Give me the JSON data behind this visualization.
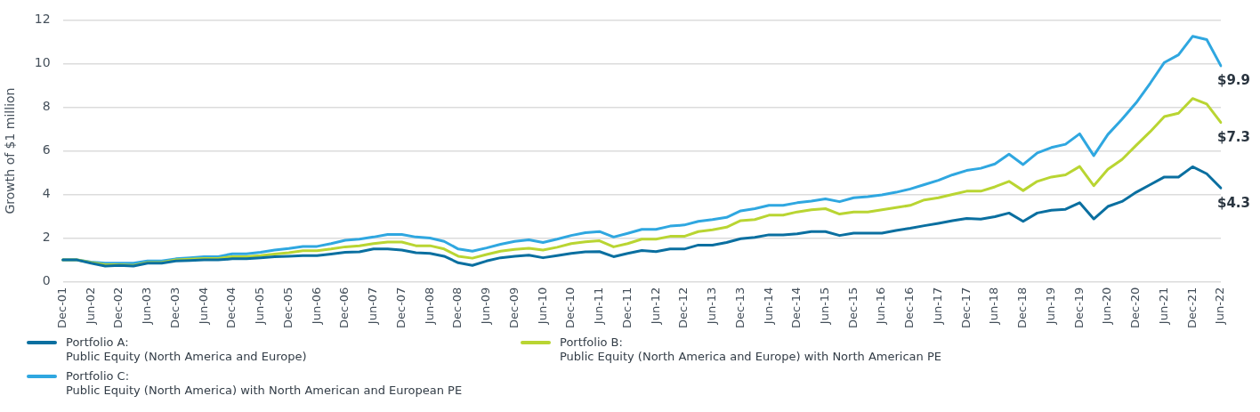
{
  "chart_data": {
    "type": "line",
    "ylabel": "Growth of $1 million",
    "ylim": [
      0,
      12
    ],
    "yticks": [
      0,
      2,
      4,
      6,
      8,
      10,
      12
    ],
    "grid": "y",
    "legend": "bottom",
    "marker": "none",
    "line_style": "solid",
    "categories": [
      "Dec-01",
      null,
      "Jun-02",
      null,
      "Dec-02",
      null,
      "Jun-03",
      null,
      "Dec-03",
      null,
      "Jun-04",
      null,
      "Dec-04",
      null,
      "Jun-05",
      null,
      "Dec-05",
      null,
      "Jun-06",
      null,
      "Dec-06",
      null,
      "Jun-07",
      null,
      "Dec-07",
      null,
      "Jun-08",
      null,
      "Dec-08",
      null,
      "Jun-09",
      null,
      "Dec-09",
      null,
      "Jun-10",
      null,
      "Dec-10",
      null,
      "Jun-11",
      null,
      "Dec-11",
      null,
      "Jun-12",
      null,
      "Dec-12",
      null,
      "Jun-13",
      null,
      "Dec-13",
      null,
      "Jun-14",
      null,
      "Dec-14",
      null,
      "Jun-15",
      null,
      "Dec-15",
      null,
      "Jun-16",
      null,
      "Dec-16",
      null,
      "Jun-17",
      null,
      "Dec-17",
      null,
      "Jun-18",
      null,
      "Dec-18",
      null,
      "Jun-19",
      null,
      "Dec-19",
      null,
      "Jun-20",
      null,
      "Dec-20",
      null,
      "Jun-21",
      null,
      "Dec-21",
      null,
      "Jun-22"
    ],
    "series": [
      {
        "name": "Portfolio A:\nPublic Equity (North America and Europe)",
        "color": "#0a6fa0",
        "values": [
          1.0,
          1.0,
          0.85,
          0.72,
          0.75,
          0.72,
          0.85,
          0.85,
          0.95,
          0.97,
          1.0,
          1.0,
          1.05,
          1.05,
          1.1,
          1.15,
          1.17,
          1.2,
          1.2,
          1.27,
          1.35,
          1.37,
          1.5,
          1.5,
          1.45,
          1.33,
          1.3,
          1.17,
          0.87,
          0.75,
          0.95,
          1.1,
          1.17,
          1.22,
          1.1,
          1.2,
          1.3,
          1.37,
          1.38,
          1.15,
          1.3,
          1.43,
          1.38,
          1.5,
          1.5,
          1.68,
          1.68,
          1.8,
          1.97,
          2.03,
          2.15,
          2.15,
          2.2,
          2.3,
          2.3,
          2.12,
          2.23,
          2.23,
          2.23,
          2.35,
          2.45,
          2.57,
          2.68,
          2.8,
          2.9,
          2.87,
          2.98,
          3.15,
          2.77,
          3.15,
          3.28,
          3.32,
          3.62,
          2.88,
          3.45,
          3.68,
          4.1,
          4.45,
          4.8,
          4.8,
          5.27,
          4.95,
          4.3
        ]
      },
      {
        "name": "Portfolio B:\nPublic Equity (North America and Europe) with North American PE",
        "color": "#b9d532",
        "values": [
          1.0,
          1.0,
          0.88,
          0.78,
          0.78,
          0.75,
          0.88,
          0.88,
          1.0,
          1.03,
          1.07,
          1.07,
          1.15,
          1.15,
          1.2,
          1.27,
          1.33,
          1.42,
          1.42,
          1.5,
          1.6,
          1.65,
          1.75,
          1.82,
          1.82,
          1.65,
          1.65,
          1.5,
          1.17,
          1.08,
          1.25,
          1.4,
          1.48,
          1.53,
          1.45,
          1.58,
          1.75,
          1.83,
          1.88,
          1.6,
          1.75,
          1.95,
          1.95,
          2.08,
          2.08,
          2.3,
          2.38,
          2.5,
          2.8,
          2.85,
          3.05,
          3.05,
          3.2,
          3.3,
          3.35,
          3.1,
          3.2,
          3.2,
          3.3,
          3.4,
          3.5,
          3.75,
          3.85,
          4.0,
          4.15,
          4.15,
          4.35,
          4.6,
          4.18,
          4.6,
          4.8,
          4.9,
          5.28,
          4.4,
          5.15,
          5.6,
          6.25,
          6.88,
          7.57,
          7.72,
          8.4,
          8.15,
          7.3
        ]
      },
      {
        "name": "Portfolio C:\nPublic Equity (North America) with North American and European PE",
        "color": "#2fa7e0",
        "values": [
          1.0,
          1.0,
          0.9,
          0.85,
          0.85,
          0.85,
          0.95,
          0.95,
          1.05,
          1.1,
          1.15,
          1.15,
          1.28,
          1.28,
          1.35,
          1.45,
          1.52,
          1.62,
          1.62,
          1.75,
          1.9,
          1.95,
          2.05,
          2.17,
          2.17,
          2.05,
          2.0,
          1.85,
          1.5,
          1.4,
          1.55,
          1.72,
          1.85,
          1.92,
          1.8,
          1.95,
          2.12,
          2.25,
          2.3,
          2.05,
          2.22,
          2.4,
          2.4,
          2.55,
          2.6,
          2.77,
          2.85,
          2.95,
          3.25,
          3.35,
          3.5,
          3.5,
          3.62,
          3.7,
          3.8,
          3.67,
          3.85,
          3.9,
          3.98,
          4.1,
          4.25,
          4.45,
          4.65,
          4.9,
          5.1,
          5.2,
          5.4,
          5.85,
          5.37,
          5.9,
          6.15,
          6.3,
          6.78,
          5.78,
          6.75,
          7.45,
          8.2,
          9.1,
          10.05,
          10.4,
          11.25,
          11.1,
          9.9
        ]
      }
    ],
    "annotations": [
      {
        "text": "$9.9",
        "x": "Jun-22",
        "y": 9.9
      },
      {
        "text": "$7.3",
        "x": "Jun-22",
        "y": 7.3
      },
      {
        "text": "$4.3",
        "x": "Jun-22",
        "y": 4.3
      }
    ]
  }
}
